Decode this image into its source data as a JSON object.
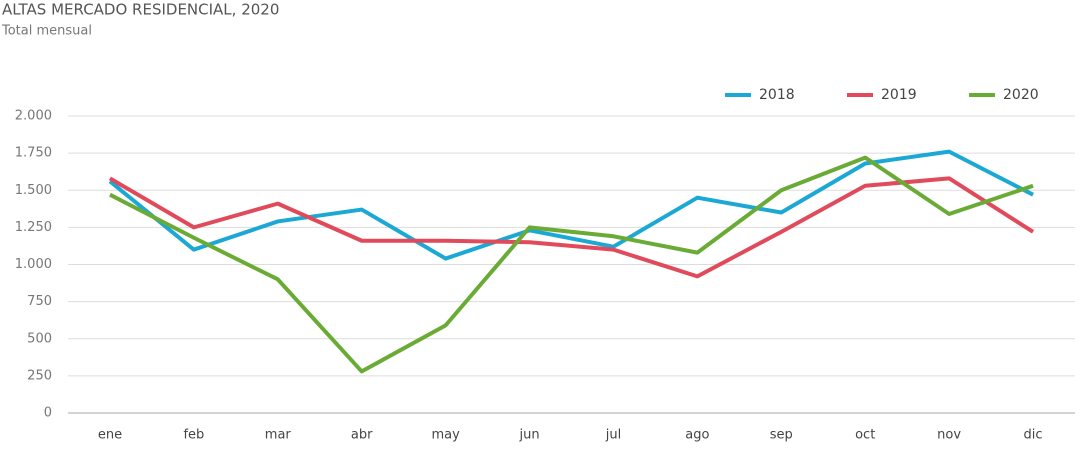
{
  "chart_data": {
    "type": "line",
    "title": "ALTAS MERCADO RESIDENCIAL, 2020",
    "subtitle": "Total mensual",
    "categories": [
      "ene",
      "feb",
      "mar",
      "abr",
      "may",
      "jun",
      "jul",
      "ago",
      "sep",
      "oct",
      "nov",
      "dic"
    ],
    "series": [
      {
        "name": "2018",
        "color": "#1ba8d5",
        "values": [
          1560,
          1100,
          1290,
          1370,
          1040,
          1230,
          1120,
          1450,
          1350,
          1680,
          1760,
          1470
        ]
      },
      {
        "name": "2019",
        "color": "#e04a5b",
        "values": [
          1580,
          1250,
          1410,
          1160,
          1160,
          1150,
          1100,
          920,
          1220,
          1530,
          1580,
          1220
        ]
      },
      {
        "name": "2020",
        "color": "#6aab36",
        "values": [
          1470,
          1180,
          900,
          280,
          590,
          1250,
          1190,
          1080,
          1500,
          1720,
          1340,
          1530
        ]
      }
    ],
    "ylim": [
      0,
      2000
    ],
    "yticks": [
      0,
      250,
      500,
      750,
      {
        "value": 1000,
        "label": "1.000"
      },
      {
        "value": 1250,
        "label": "1.250"
      },
      {
        "value": 1500,
        "label": "1.500"
      },
      {
        "value": 1750,
        "label": "1.750"
      },
      {
        "value": 2000,
        "label": "2.000"
      }
    ],
    "grid": true,
    "legend": "top-right"
  }
}
